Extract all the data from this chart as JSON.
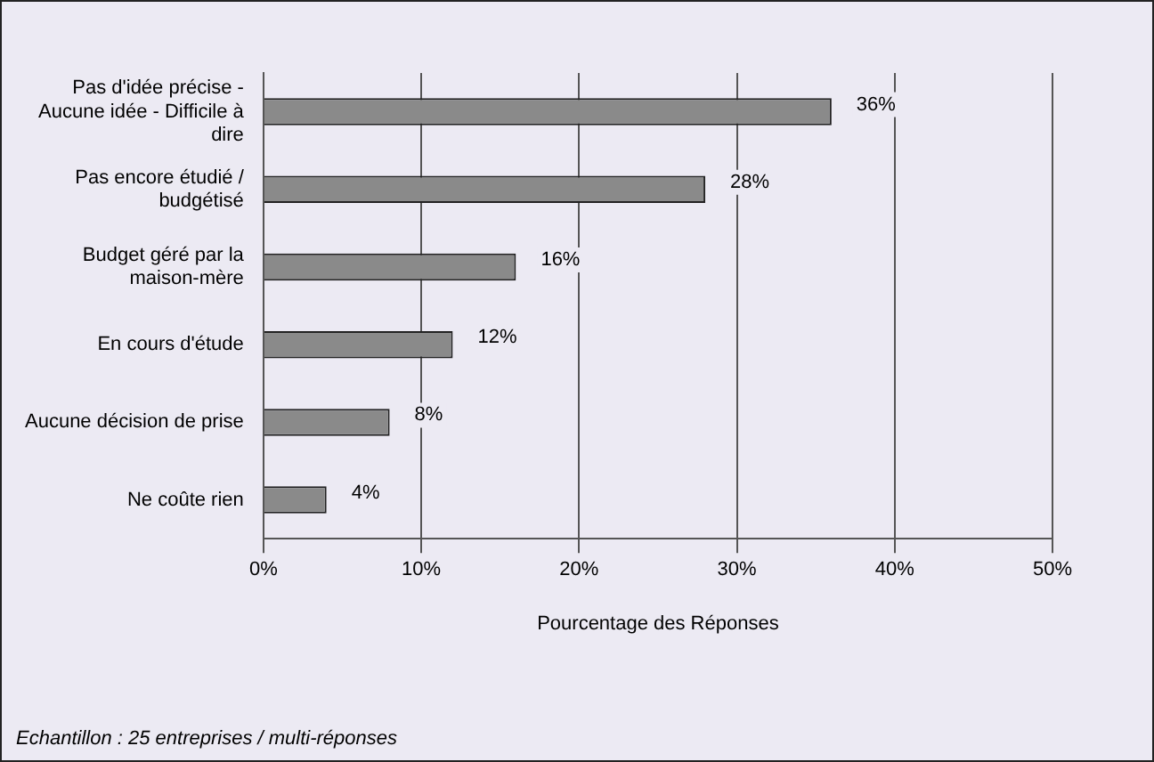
{
  "chart_data": {
    "type": "bar",
    "orientation": "horizontal",
    "categories": [
      "Pas d'idée précise - Aucune idée - Difficile à dire",
      "Pas encore étudié / budgétisé",
      "Budget géré par la maison-mère",
      "En cours d'étude",
      "Aucune décision de prise",
      "Ne coûte rien"
    ],
    "values": [
      36,
      28,
      16,
      12,
      8,
      4
    ],
    "value_labels": [
      "36%",
      "28%",
      "16%",
      "12%",
      "8%",
      "4%"
    ],
    "color": "#8a8a8a",
    "xlim": [
      0,
      50
    ],
    "xticks": [
      {
        "value": 0,
        "label": "0%"
      },
      {
        "value": 10,
        "label": "10%"
      },
      {
        "value": 20,
        "label": "20%"
      },
      {
        "value": 30,
        "label": "30%"
      },
      {
        "value": 40,
        "label": "40%"
      },
      {
        "value": 50,
        "label": "50%"
      }
    ],
    "xlabel": "Pourcentage des Réponses",
    "grid": "x",
    "legend": false,
    "annotations": [
      "Echantillon : 25 entreprises / multi-réponses"
    ]
  }
}
